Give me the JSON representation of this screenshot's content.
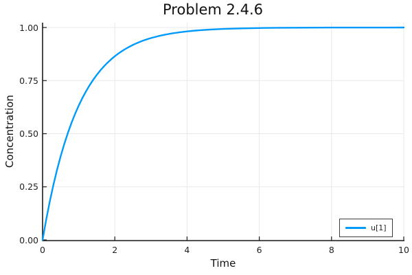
{
  "chart": {
    "title": "Problem 2.4.6",
    "xlabel": "Time",
    "ylabel": "Concentration"
  },
  "colors": {
    "series_blue": "#009AFA",
    "grid": "#e8e8e8",
    "axis": "#1a1a1a",
    "tick_text": "#1f1f1f",
    "background": "#ffffff",
    "legend_border": "#3c3c3c"
  },
  "chart_data": {
    "type": "line",
    "title": "Problem 2.4.6",
    "xlabel": "Time",
    "ylabel": "Concentration",
    "xlim": [
      0,
      10
    ],
    "ylim": [
      0.0,
      1.0
    ],
    "xticks": [
      0,
      2,
      4,
      6,
      8,
      10
    ],
    "xtick_labels": [
      "0",
      "2",
      "4",
      "6",
      "8",
      "10"
    ],
    "yticks": [
      0.0,
      0.25,
      0.5,
      0.75,
      1.0
    ],
    "ytick_labels": [
      "0.00",
      "0.25",
      "0.50",
      "0.75",
      "1.00"
    ],
    "grid": true,
    "legend_position": "bottom-right",
    "series": [
      {
        "name": "u[1]",
        "color": "#009AFA",
        "x": [
          0,
          0.1,
          0.2,
          0.3,
          0.4,
          0.5,
          0.6,
          0.7,
          0.8,
          0.9,
          1.0,
          1.1,
          1.2,
          1.3,
          1.4,
          1.5,
          1.6,
          1.7,
          1.8,
          1.9,
          2.0,
          2.1,
          2.2,
          2.3,
          2.4,
          2.5,
          2.6,
          2.7,
          2.8,
          2.9,
          3.0,
          3.2,
          3.4,
          3.6,
          3.8,
          4.0,
          4.2,
          4.4,
          4.6,
          4.8,
          5.0,
          5.5,
          6.0,
          6.5,
          7.0,
          7.5,
          8.0,
          8.5,
          9.0,
          9.5,
          10.0
        ],
        "y": [
          0.0,
          0.0952,
          0.1813,
          0.2592,
          0.3297,
          0.3935,
          0.4512,
          0.5034,
          0.5507,
          0.5934,
          0.6321,
          0.6671,
          0.6988,
          0.7275,
          0.7534,
          0.7769,
          0.7981,
          0.8173,
          0.8347,
          0.8504,
          0.8647,
          0.8775,
          0.8892,
          0.8997,
          0.9093,
          0.9179,
          0.9257,
          0.9328,
          0.9392,
          0.945,
          0.9502,
          0.9592,
          0.9666,
          0.9727,
          0.9776,
          0.9817,
          0.985,
          0.9877,
          0.9899,
          0.9918,
          0.9933,
          0.9959,
          0.9975,
          0.9985,
          0.9991,
          0.9994,
          0.9997,
          0.9998,
          0.9999,
          0.9999,
          1.0
        ]
      }
    ]
  }
}
